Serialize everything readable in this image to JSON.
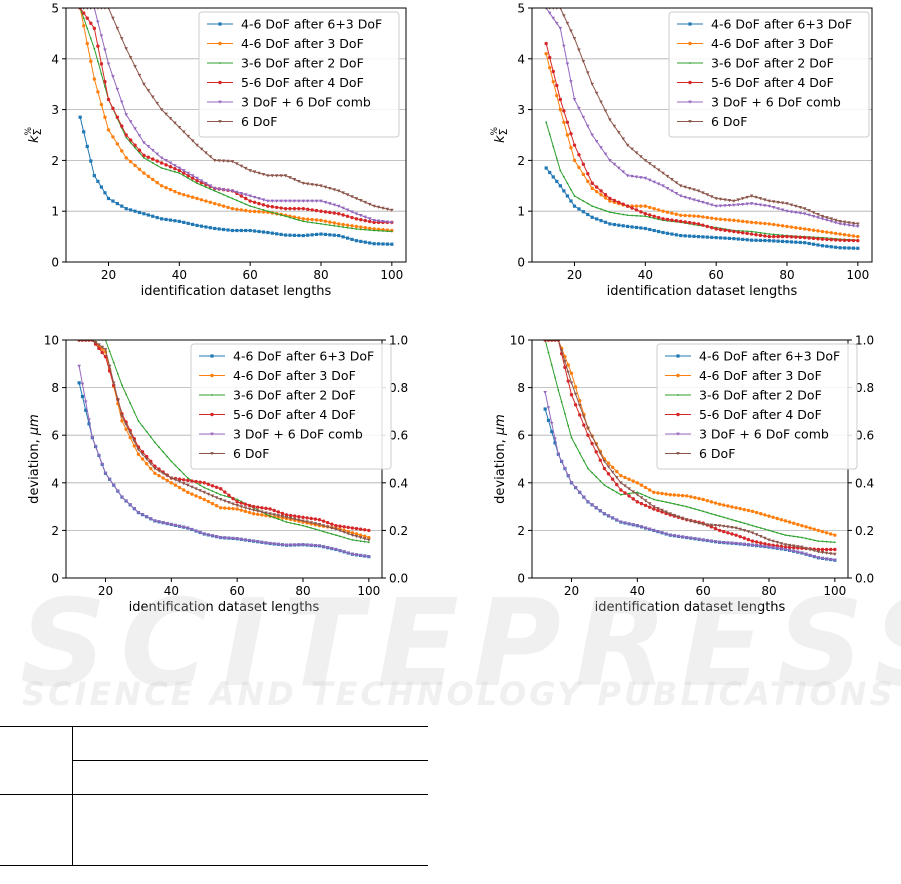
{
  "watermark": {
    "brand": "SCITEPRESS",
    "tagline": "SCIENCE AND TECHNOLOGY PUBLICATIONS"
  },
  "colors": {
    "s0": "#1f77b4",
    "s1": "#ff7f0e",
    "s2": "#2ca02c",
    "s3": "#d62728",
    "s4": "#9467bd",
    "s5": "#8c564b"
  },
  "chart_data": [
    {
      "type": "line",
      "position": "top-left",
      "title": "",
      "xlabel": "identification dataset lengths",
      "ylabel": "k_Σ^%",
      "xlim": [
        8,
        104
      ],
      "ylim": [
        0,
        5
      ],
      "xticks": [
        20,
        40,
        60,
        80,
        100
      ],
      "yticks": [
        0,
        1,
        2,
        3,
        4,
        5
      ],
      "grid": "horizontal",
      "legend": "top-right",
      "x": [
        12,
        16,
        20,
        25,
        30,
        35,
        40,
        45,
        50,
        55,
        60,
        65,
        70,
        75,
        80,
        85,
        90,
        95,
        100
      ],
      "series": [
        {
          "name": "4-6 DoF after 6+3 DoF",
          "values": [
            2.85,
            1.7,
            1.25,
            1.05,
            0.95,
            0.85,
            0.8,
            0.72,
            0.66,
            0.62,
            0.62,
            0.58,
            0.53,
            0.52,
            0.55,
            0.52,
            0.42,
            0.36,
            0.35
          ]
        },
        {
          "name": "4-6 DoF after 3 DoF",
          "values": [
            5.0,
            3.6,
            2.6,
            2.05,
            1.75,
            1.5,
            1.35,
            1.25,
            1.15,
            1.05,
            1.0,
            0.98,
            0.92,
            0.85,
            0.82,
            0.75,
            0.7,
            0.65,
            0.62
          ]
        },
        {
          "name": "3-6 DoF after 2 DoF",
          "values": [
            5.0,
            4.2,
            3.2,
            2.45,
            2.05,
            1.85,
            1.75,
            1.55,
            1.4,
            1.25,
            1.1,
            1.0,
            0.9,
            0.8,
            0.75,
            0.7,
            0.65,
            0.62,
            0.6
          ]
        },
        {
          "name": "5-6 DoF after 4 DoF",
          "values": [
            5.0,
            4.6,
            3.2,
            2.5,
            2.1,
            1.95,
            1.8,
            1.6,
            1.45,
            1.4,
            1.2,
            1.1,
            1.05,
            1.05,
            1.0,
            0.95,
            0.85,
            0.78,
            0.78
          ]
        },
        {
          "name": "3 DoF + 6 DoF comb",
          "values": [
            5.0,
            5.0,
            3.9,
            2.9,
            2.35,
            2.05,
            1.85,
            1.65,
            1.45,
            1.4,
            1.3,
            1.2,
            1.2,
            1.2,
            1.2,
            1.1,
            0.95,
            0.82,
            0.78
          ]
        },
        {
          "name": "6 DoF",
          "values": [
            5.0,
            5.0,
            5.0,
            4.2,
            3.5,
            3.0,
            2.65,
            2.3,
            2.0,
            1.98,
            1.8,
            1.7,
            1.7,
            1.55,
            1.5,
            1.4,
            1.25,
            1.1,
            1.02
          ]
        }
      ]
    },
    {
      "type": "line",
      "position": "top-right",
      "title": "",
      "xlabel": "identification dataset lengths",
      "ylabel": "k_Σ^%",
      "xlim": [
        8,
        104
      ],
      "ylim": [
        0,
        5
      ],
      "xticks": [
        20,
        40,
        60,
        80,
        100
      ],
      "yticks": [
        0,
        1,
        2,
        3,
        4,
        5
      ],
      "grid": "horizontal",
      "legend": "top-right",
      "x": [
        12,
        16,
        20,
        25,
        30,
        35,
        40,
        45,
        50,
        55,
        60,
        65,
        70,
        75,
        80,
        85,
        90,
        95,
        100
      ],
      "series": [
        {
          "name": "4-6 DoF after 6+3 DoF",
          "values": [
            1.85,
            1.5,
            1.1,
            0.88,
            0.75,
            0.7,
            0.66,
            0.58,
            0.52,
            0.5,
            0.48,
            0.46,
            0.43,
            0.42,
            0.4,
            0.38,
            0.32,
            0.28,
            0.27
          ]
        },
        {
          "name": "4-6 DoF after 3 DoF",
          "values": [
            4.1,
            3.0,
            2.0,
            1.45,
            1.2,
            1.1,
            1.1,
            1.0,
            0.92,
            0.9,
            0.85,
            0.82,
            0.78,
            0.75,
            0.7,
            0.65,
            0.6,
            0.55,
            0.5
          ]
        },
        {
          "name": "3-6 DoF after 2 DoF",
          "values": [
            2.75,
            1.8,
            1.3,
            1.1,
            0.98,
            0.92,
            0.9,
            0.82,
            0.78,
            0.72,
            0.68,
            0.62,
            0.6,
            0.55,
            0.52,
            0.5,
            0.48,
            0.45,
            0.43
          ]
        },
        {
          "name": "5-6 DoF after 4 DoF",
          "values": [
            4.3,
            3.2,
            2.3,
            1.55,
            1.25,
            1.1,
            0.95,
            0.85,
            0.8,
            0.75,
            0.65,
            0.6,
            0.55,
            0.5,
            0.5,
            0.48,
            0.45,
            0.43,
            0.42
          ]
        },
        {
          "name": "3 DoF + 6 DoF comb",
          "values": [
            5.0,
            4.6,
            3.2,
            2.5,
            2.0,
            1.7,
            1.65,
            1.5,
            1.3,
            1.2,
            1.1,
            1.12,
            1.15,
            1.1,
            1.0,
            0.95,
            0.85,
            0.75,
            0.7
          ]
        },
        {
          "name": "6 DoF",
          "values": [
            5.0,
            5.0,
            4.4,
            3.5,
            2.8,
            2.3,
            2.0,
            1.75,
            1.5,
            1.4,
            1.25,
            1.2,
            1.3,
            1.2,
            1.15,
            1.05,
            0.9,
            0.8,
            0.75
          ]
        }
      ]
    },
    {
      "type": "line",
      "position": "bottom-left",
      "title": "",
      "xlabel": "identification dataset lengths",
      "ylabel": "deviation, μm",
      "xlim": [
        8,
        104
      ],
      "ylim": [
        0,
        10
      ],
      "y2lim": [
        0,
        1.0
      ],
      "xticks": [
        20,
        40,
        60,
        80,
        100
      ],
      "yticks": [
        0,
        2,
        4,
        6,
        8,
        10
      ],
      "y2ticks": [
        "0.0",
        "0.2",
        "0.4",
        "0.6",
        "0.8",
        "1.0"
      ],
      "grid": "horizontal",
      "legend": "top-right",
      "x": [
        12,
        16,
        20,
        25,
        30,
        35,
        40,
        45,
        50,
        55,
        60,
        65,
        70,
        75,
        80,
        85,
        90,
        95,
        100
      ],
      "series": [
        {
          "name": "4-6 DoF after 6+3 DoF",
          "values": [
            8.2,
            5.9,
            4.4,
            3.4,
            2.75,
            2.4,
            2.25,
            2.1,
            1.85,
            1.7,
            1.65,
            1.55,
            1.45,
            1.38,
            1.4,
            1.35,
            1.2,
            1.0,
            0.9
          ]
        },
        {
          "name": "4-6 DoF after 3 DoF",
          "values": [
            10.0,
            10.0,
            9.5,
            6.6,
            5.2,
            4.4,
            4.0,
            3.6,
            3.3,
            2.95,
            2.9,
            2.7,
            2.6,
            2.5,
            2.35,
            2.2,
            2.1,
            1.9,
            1.7
          ]
        },
        {
          "name": "3-6 DoF after 2 DoF",
          "values": [
            10.0,
            10.0,
            10.0,
            8.1,
            6.6,
            5.7,
            4.9,
            4.2,
            3.8,
            3.5,
            3.3,
            2.95,
            2.6,
            2.35,
            2.2,
            2.0,
            1.8,
            1.6,
            1.5
          ]
        },
        {
          "name": "5-6 DoF after 4 DoF",
          "values": [
            10.0,
            10.0,
            9.3,
            6.9,
            5.5,
            4.7,
            4.2,
            4.1,
            4.0,
            3.75,
            3.2,
            3.0,
            2.9,
            2.65,
            2.55,
            2.45,
            2.2,
            2.1,
            2.0
          ]
        },
        {
          "name": "3 DoF + 6 DoF comb",
          "values": [
            8.9,
            5.9,
            4.4,
            3.4,
            2.75,
            2.4,
            2.25,
            2.1,
            1.85,
            1.7,
            1.65,
            1.55,
            1.45,
            1.38,
            1.4,
            1.35,
            1.2,
            1.0,
            0.9
          ]
        },
        {
          "name": "6 DoF",
          "values": [
            10.0,
            10.0,
            9.6,
            6.8,
            5.4,
            4.6,
            4.2,
            3.9,
            3.6,
            3.3,
            3.05,
            2.85,
            2.7,
            2.55,
            2.4,
            2.25,
            2.05,
            1.8,
            1.6
          ]
        }
      ]
    },
    {
      "type": "line",
      "position": "bottom-right",
      "title": "",
      "xlabel": "identification dataset lengths",
      "ylabel": "deviation, μm",
      "xlim": [
        8,
        104
      ],
      "ylim": [
        0,
        10
      ],
      "y2lim": [
        0,
        1.0
      ],
      "xticks": [
        20,
        40,
        60,
        80,
        100
      ],
      "yticks": [
        0,
        2,
        4,
        6,
        8,
        10
      ],
      "y2ticks": [
        "0.0",
        "0.2",
        "0.4",
        "0.6",
        "0.8",
        "1.0"
      ],
      "grid": "horizontal",
      "legend": "top-right",
      "x": [
        12,
        16,
        20,
        25,
        30,
        35,
        40,
        45,
        50,
        55,
        60,
        65,
        70,
        75,
        80,
        85,
        90,
        95,
        100
      ],
      "series": [
        {
          "name": "4-6 DoF after 6+3 DoF",
          "values": [
            7.1,
            5.2,
            4.0,
            3.2,
            2.7,
            2.35,
            2.2,
            2.0,
            1.8,
            1.7,
            1.6,
            1.5,
            1.45,
            1.38,
            1.3,
            1.2,
            1.05,
            0.85,
            0.75
          ]
        },
        {
          "name": "4-6 DoF after 3 DoF",
          "values": [
            10.0,
            10.0,
            8.6,
            6.3,
            5.0,
            4.3,
            4.0,
            3.6,
            3.5,
            3.45,
            3.3,
            3.1,
            2.95,
            2.8,
            2.6,
            2.4,
            2.2,
            2.0,
            1.8
          ]
        },
        {
          "name": "3-6 DoF after 2 DoF",
          "values": [
            10.0,
            7.9,
            5.9,
            4.6,
            3.9,
            3.5,
            3.6,
            3.3,
            3.15,
            3.0,
            2.8,
            2.6,
            2.4,
            2.2,
            2.0,
            1.8,
            1.7,
            1.55,
            1.5
          ]
        },
        {
          "name": "5-6 DoF after 4 DoF",
          "values": [
            10.0,
            10.0,
            7.7,
            6.0,
            4.6,
            3.7,
            3.2,
            2.9,
            2.65,
            2.45,
            2.3,
            2.0,
            1.8,
            1.55,
            1.4,
            1.3,
            1.25,
            1.2,
            1.2
          ]
        },
        {
          "name": "3 DoF + 6 DoF comb",
          "values": [
            7.8,
            5.2,
            4.0,
            3.2,
            2.7,
            2.35,
            2.2,
            2.0,
            1.8,
            1.7,
            1.6,
            1.5,
            1.45,
            1.38,
            1.3,
            1.2,
            1.05,
            0.85,
            0.75
          ]
        },
        {
          "name": "6 DoF",
          "values": [
            10.0,
            10.0,
            8.2,
            6.3,
            4.9,
            4.0,
            3.5,
            3.0,
            2.7,
            2.45,
            2.25,
            2.2,
            2.1,
            1.9,
            1.6,
            1.4,
            1.3,
            1.1,
            1.0
          ]
        }
      ]
    }
  ]
}
